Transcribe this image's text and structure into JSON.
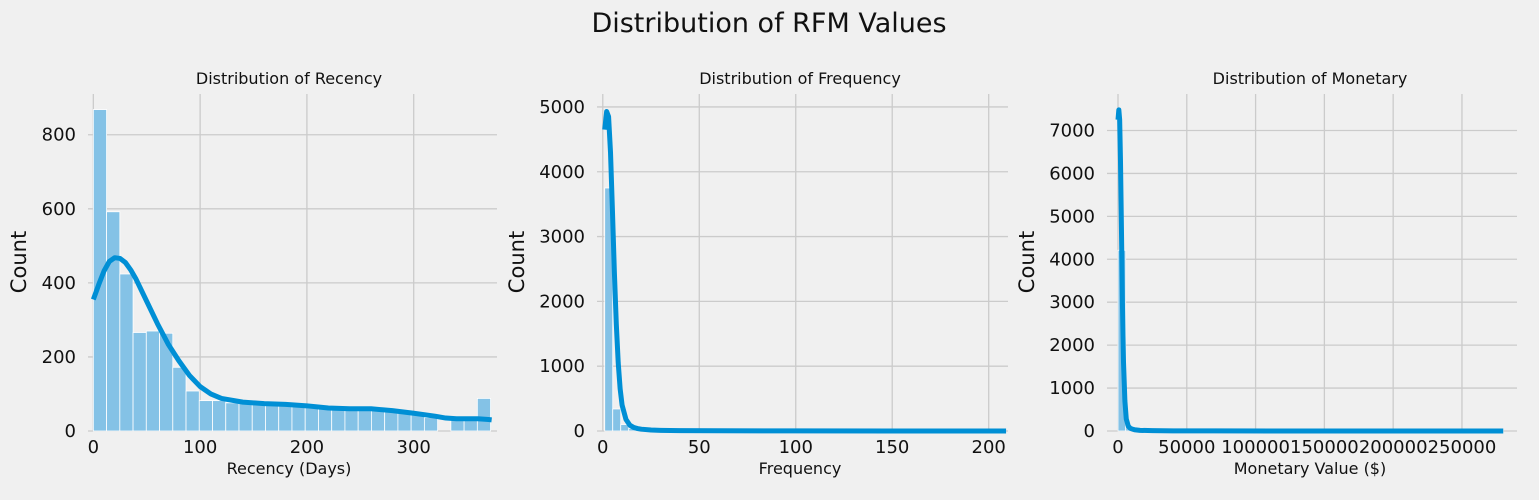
{
  "figure": {
    "title": "Distribution of RFM Values",
    "background": "#f0f0f0",
    "bar_color": "#84c2e6",
    "line_color": "#008fd5",
    "grid_color": "#cbcbcb"
  },
  "chart_data": [
    {
      "type": "bar",
      "title": "Distribution of Recency",
      "xlabel": "Recency (Days)",
      "ylabel": "Count",
      "xlim": [
        -5,
        378
      ],
      "ylim": [
        0,
        910
      ],
      "xticks": [
        0,
        100,
        200,
        300
      ],
      "yticks": [
        0,
        200,
        400,
        600,
        800
      ],
      "grid": true,
      "bins": {
        "start": 0,
        "width": 12.4,
        "counts": [
          868,
          592,
          424,
          266,
          270,
          264,
          172,
          108,
          82,
          82,
          76,
          74,
          74,
          72,
          72,
          70,
          66,
          62,
          62,
          62,
          62,
          62,
          52,
          50,
          48,
          36,
          0,
          32,
          32,
          88
        ]
      },
      "kde": {
        "x": [
          0,
          5,
          10,
          15,
          20,
          25,
          30,
          35,
          40,
          50,
          60,
          70,
          80,
          90,
          100,
          110,
          120,
          140,
          160,
          180,
          200,
          220,
          240,
          260,
          280,
          300,
          320,
          330,
          340,
          350,
          360,
          370,
          373
        ],
        "y": [
          355,
          395,
          432,
          458,
          468,
          466,
          455,
          435,
          410,
          350,
          290,
          235,
          190,
          150,
          120,
          100,
          88,
          78,
          74,
          72,
          68,
          62,
          60,
          60,
          55,
          48,
          40,
          35,
          33,
          33,
          33,
          31,
          30
        ]
      }
    },
    {
      "type": "bar",
      "title": "Distribution of Frequency",
      "xlabel": "Frequency",
      "ylabel": "Count",
      "xlim": [
        -3,
        210
      ],
      "ylim": [
        0,
        5200
      ],
      "xticks": [
        0,
        50,
        100,
        150,
        200
      ],
      "yticks": [
        0,
        1000,
        2000,
        3000,
        4000,
        5000
      ],
      "grid": true,
      "bins": {
        "start": 1,
        "width": 4.15,
        "counts": [
          3750,
          340,
          100,
          40,
          18,
          10,
          6,
          5,
          4,
          3,
          2,
          2,
          1,
          1,
          1,
          1,
          0,
          0,
          0,
          0,
          0,
          0,
          0,
          0,
          0,
          0,
          0,
          0,
          0,
          0,
          0,
          0,
          0,
          0,
          0,
          0,
          0,
          0,
          0,
          0,
          0,
          0,
          0,
          0,
          0,
          0,
          0,
          0,
          0,
          1
        ]
      },
      "kde": {
        "x": [
          1,
          2,
          3,
          4,
          5,
          6,
          7,
          8,
          9,
          10,
          12,
          14,
          16,
          18,
          20,
          25,
          30,
          40,
          60,
          100,
          150,
          209
        ],
        "y": [
          4650,
          4930,
          4850,
          4300,
          3400,
          2450,
          1650,
          1050,
          650,
          400,
          180,
          90,
          55,
          38,
          28,
          15,
          10,
          5,
          3,
          2,
          1,
          0
        ]
      }
    },
    {
      "type": "bar",
      "title": "Distribution of Monetary",
      "xlabel": "Monetary Value ($)",
      "ylabel": "Count",
      "xlim": [
        -8000,
        290000
      ],
      "ylim": [
        0,
        7850
      ],
      "xticks": [
        0,
        50000,
        100000,
        150000,
        200000,
        250000
      ],
      "yticks": [
        0,
        1000,
        2000,
        3000,
        4000,
        5000,
        6000,
        7000
      ],
      "grid": true,
      "bins": {
        "start": 0,
        "width": 5600,
        "counts": [
          4210,
          110,
          30,
          10,
          6,
          3,
          2,
          2,
          1,
          1,
          1,
          0,
          0,
          0,
          0,
          0,
          0,
          0,
          0,
          0,
          0,
          0,
          0,
          0,
          0,
          0,
          0,
          0,
          0,
          0,
          0,
          0,
          0,
          0,
          0,
          0,
          0,
          0,
          0,
          0,
          0,
          0,
          0,
          0,
          0,
          0,
          0,
          0,
          0,
          1
        ]
      },
      "kde": {
        "x": [
          0,
          600,
          1200,
          1800,
          2500,
          3200,
          4000,
          5000,
          6000,
          7500,
          9000,
          12000,
          16000,
          25000,
          40000,
          70000,
          120000,
          200000,
          280000
        ],
        "y": [
          7250,
          7480,
          7250,
          6300,
          4700,
          3000,
          1600,
          700,
          280,
          110,
          60,
          30,
          15,
          8,
          4,
          2,
          1,
          0.5,
          0
        ]
      }
    }
  ]
}
